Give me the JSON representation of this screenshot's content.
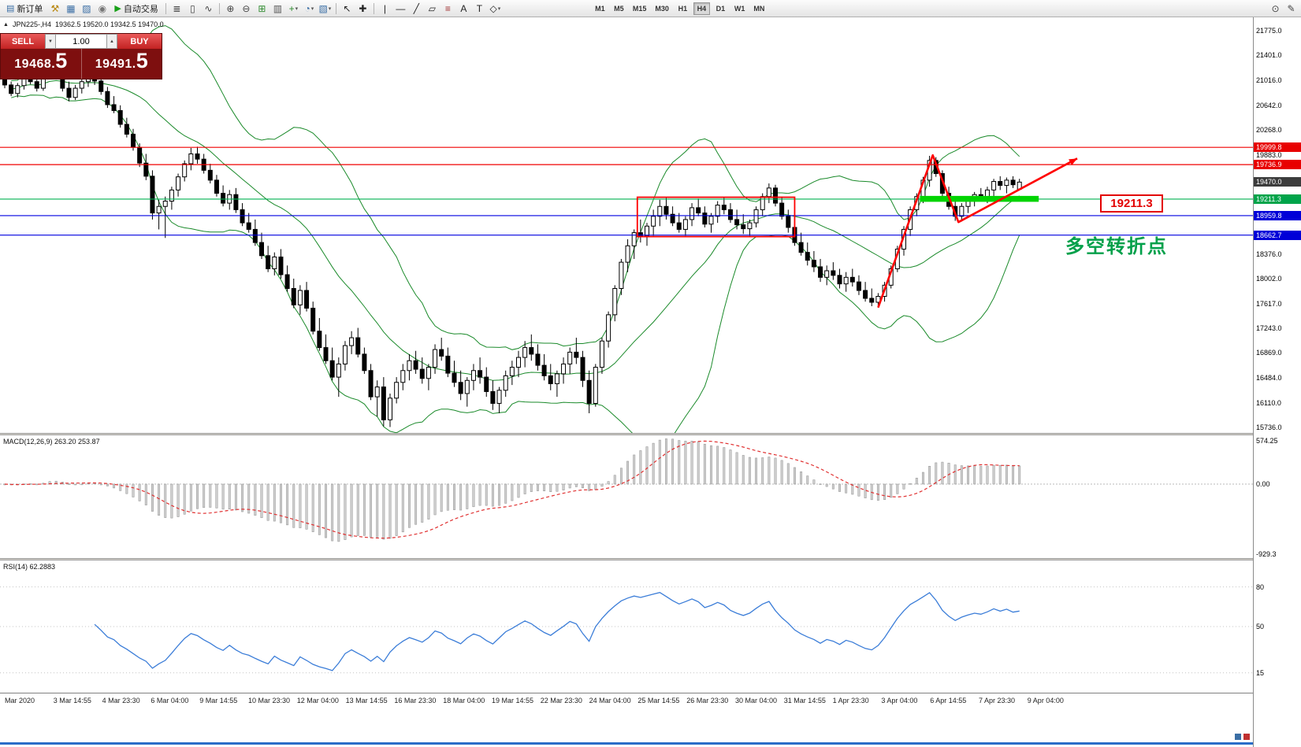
{
  "toolbar": {
    "dropdown_glyph": "▾",
    "items": [
      {
        "t": "btn",
        "name": "new-order-button",
        "glyph": "▤",
        "c": "#3a6ea5",
        "label": "新订单"
      },
      {
        "t": "icon",
        "name": "compile-icon",
        "glyph": "⚒",
        "c": "#b8860b"
      },
      {
        "t": "icon",
        "name": "market-watch-icon",
        "glyph": "▦",
        "c": "#3a6ea5"
      },
      {
        "t": "icon",
        "name": "data-window-icon",
        "glyph": "▨",
        "c": "#3a6ea5"
      },
      {
        "t": "icon",
        "name": "navigator-icon",
        "glyph": "◉",
        "c": "#777777"
      },
      {
        "t": "btn",
        "name": "auto-trading-button",
        "glyph": "▶",
        "c": "#18a018",
        "label": "自动交易"
      },
      {
        "t": "sep"
      },
      {
        "t": "icon",
        "name": "bar-chart-icon",
        "glyph": "≣",
        "c": "#444444"
      },
      {
        "t": "icon",
        "name": "candlestick-chart-icon",
        "glyph": "▯",
        "c": "#444444"
      },
      {
        "t": "icon",
        "name": "line-chart-icon",
        "glyph": "∿",
        "c": "#444444"
      },
      {
        "t": "sep"
      },
      {
        "t": "icon",
        "name": "zoom-in-icon",
        "glyph": "⊕",
        "c": "#444444"
      },
      {
        "t": "icon",
        "name": "zoom-out-icon",
        "glyph": "⊖",
        "c": "#444444"
      },
      {
        "t": "icon",
        "name": "grid-icon",
        "glyph": "⊞",
        "c": "#2e8b2e"
      },
      {
        "t": "icon",
        "name": "chart-shift-icon",
        "glyph": "▥",
        "c": "#555555"
      },
      {
        "t": "icon",
        "name": "add-indicator-icon",
        "glyph": "+",
        "c": "#2e8b2e",
        "dd": true
      },
      {
        "t": "icon",
        "name": "periods-icon",
        "glyph": "◔",
        "c": "#3a6ea5",
        "dd": true
      },
      {
        "t": "icon",
        "name": "templates-icon",
        "glyph": "▧",
        "c": "#3a6ea5",
        "dd": true
      },
      {
        "t": "sep"
      },
      {
        "t": "icon",
        "name": "cursor-icon",
        "glyph": "↖",
        "c": "#222222"
      },
      {
        "t": "icon",
        "name": "crosshair-icon",
        "glyph": "✚",
        "c": "#222222"
      },
      {
        "t": "sep"
      },
      {
        "t": "icon",
        "name": "vertical-line-icon",
        "glyph": "|",
        "c": "#222222"
      },
      {
        "t": "icon",
        "name": "horizontal-line-icon",
        "glyph": "—",
        "c": "#222222"
      },
      {
        "t": "icon",
        "name": "trendline-icon",
        "glyph": "╱",
        "c": "#222222"
      },
      {
        "t": "icon",
        "name": "channel-icon",
        "glyph": "▱",
        "c": "#222222"
      },
      {
        "t": "icon",
        "name": "fibonacci-icon",
        "glyph": "≡",
        "c": "#a03030",
        "sub": "E"
      },
      {
        "t": "icon",
        "name": "text-icon",
        "glyph": "A",
        "c": "#222222"
      },
      {
        "t": "icon",
        "name": "label-icon",
        "glyph": "T",
        "c": "#222222"
      },
      {
        "t": "icon",
        "name": "arrows-icon",
        "glyph": "◇",
        "c": "#222222",
        "dd": true
      },
      {
        "t": "gap"
      },
      {
        "t": "tf"
      },
      {
        "t": "spacer"
      },
      {
        "t": "icon",
        "name": "search-icon",
        "glyph": "⊙",
        "c": "#444444"
      },
      {
        "t": "icon",
        "name": "edit-icon",
        "glyph": "✎",
        "c": "#444444"
      }
    ],
    "timeframes": [
      "M1",
      "M5",
      "M15",
      "M30",
      "H1",
      "H4",
      "D1",
      "W1",
      "MN"
    ],
    "active_timeframe": "H4"
  },
  "chart_header": {
    "collapse_icon": "▲",
    "symbol": "JPN225-,H4",
    "ohlc": "19362.5 19520.0 19342.5 19470.0"
  },
  "trade_panel": {
    "sell_label": "SELL",
    "buy_label": "BUY",
    "volume": "1.00",
    "spin_down": "▼",
    "spin_up": "▲",
    "sell_price": "19468.",
    "sell_pip": "5",
    "buy_price": "19491.",
    "buy_pip": "5"
  },
  "indicator_labels": {
    "macd": "MACD(12,26,9) 263.20 253.87",
    "rsi": "RSI(14) 62.2883"
  },
  "annotations": {
    "price_callout": "19211.3",
    "turning_point": "多空转折点"
  },
  "price_scale": {
    "ticks": [
      "21775.0",
      "21401.0",
      "21016.0",
      "20642.0",
      "20268.0",
      "19883.0",
      "18376.0",
      "18002.0",
      "17617.0",
      "17243.0",
      "16869.0",
      "16484.0",
      "16110.0",
      "15736.0"
    ],
    "macd_ticks": [
      "574.25",
      "0.00",
      "-929.3"
    ],
    "rsi_ticks": [
      "80",
      "50",
      "15"
    ]
  },
  "time_axis": [
    "Mar 2020",
    "3 Mar 14:55",
    "4 Mar 23:30",
    "6 Mar 04:00",
    "9 Mar 14:55",
    "10 Mar 23:30",
    "12 Mar 04:00",
    "13 Mar 14:55",
    "16 Mar 23:30",
    "18 Mar 04:00",
    "19 Mar 14:55",
    "22 Mar 23:30",
    "24 Mar 04:00",
    "25 Mar 14:55",
    "26 Mar 23:30",
    "30 Mar 04:00",
    "31 Mar 14:55",
    "1 Apr 23:30",
    "3 Apr 04:00",
    "6 Apr 14:55",
    "7 Apr 23:30",
    "9 Apr 04:00"
  ],
  "chart_data": {
    "type": "candlestick",
    "symbol": "JPN225-",
    "timeframe": "H4",
    "y_range": [
      15650,
      21980
    ],
    "indicators": {
      "bollinger_period": 20,
      "bollinger_dev": 2,
      "macd": [
        12,
        26,
        9
      ],
      "rsi_period": 14
    },
    "levels": [
      {
        "price": 19999.8,
        "label": "19999.8",
        "color": "#f00000",
        "tag": "red",
        "line": true
      },
      {
        "price": 19736.9,
        "label": "19736.9",
        "color": "#f00000",
        "tag": "red",
        "line": true
      },
      {
        "price": 19470.0,
        "label": "19470.0",
        "color": "#3c3c3c",
        "tag": "dark",
        "line": false
      },
      {
        "price": 19211.3,
        "label": "19211.3",
        "color": "#00b050",
        "tag": "green",
        "line": true
      },
      {
        "price": 18959.8,
        "label": "18959.8",
        "color": "#0000e0",
        "tag": "blue",
        "line": true
      },
      {
        "price": 18662.7,
        "label": "18662.7",
        "color": "#0000e0",
        "tag": "blue",
        "line": true
      }
    ],
    "shapes": {
      "red_rect": {
        "i1": 98.5,
        "i2": 123,
        "p1": 19240,
        "p2": 18640
      },
      "green_zone": {
        "i1": 142.5,
        "i2": 161,
        "p1": 19260,
        "p2": 19170
      },
      "trend_arrow": [
        [
          136,
          17560
        ],
        [
          144.5,
          19880
        ],
        [
          148.5,
          18860
        ],
        [
          167,
          19830
        ]
      ]
    },
    "macd_scale": {
      "zero_y": 62,
      "per_unit": 0.094
    },
    "rsi_range": [
      0,
      100
    ],
    "ohlc": [
      [
        21050,
        21120,
        20900,
        20950
      ],
      [
        20950,
        21000,
        20780,
        20820
      ],
      [
        20820,
        20980,
        20760,
        20940
      ],
      [
        20940,
        21100,
        20880,
        21060
      ],
      [
        21060,
        21160,
        20960,
        21000
      ],
      [
        21000,
        21080,
        20850,
        20900
      ],
      [
        20900,
        21150,
        20860,
        21100
      ],
      [
        21100,
        21320,
        21050,
        21260
      ],
      [
        21260,
        21300,
        21080,
        21120
      ],
      [
        21120,
        21180,
        20850,
        20900
      ],
      [
        20900,
        21000,
        20700,
        20760
      ],
      [
        20760,
        20950,
        20720,
        20900
      ],
      [
        20900,
        21050,
        20820,
        21000
      ],
      [
        21000,
        21120,
        20920,
        21080
      ],
      [
        21080,
        21150,
        20950,
        21010
      ],
      [
        21010,
        21060,
        20800,
        20850
      ],
      [
        20850,
        20920,
        20600,
        20650
      ],
      [
        20650,
        20780,
        20520,
        20560
      ],
      [
        20560,
        20640,
        20300,
        20350
      ],
      [
        20350,
        20450,
        20150,
        20200
      ],
      [
        20200,
        20280,
        19950,
        20000
      ],
      [
        20000,
        20060,
        19700,
        19760
      ],
      [
        19760,
        19900,
        19500,
        19560
      ],
      [
        19560,
        19650,
        18900,
        19000
      ],
      [
        19000,
        19200,
        18750,
        19100
      ],
      [
        19100,
        19250,
        18620,
        19180
      ],
      [
        19180,
        19400,
        19050,
        19350
      ],
      [
        19350,
        19600,
        19250,
        19550
      ],
      [
        19550,
        19800,
        19480,
        19750
      ],
      [
        19750,
        19990,
        19650,
        19900
      ],
      [
        19900,
        20010,
        19750,
        19820
      ],
      [
        19820,
        19900,
        19600,
        19650
      ],
      [
        19650,
        19750,
        19450,
        19500
      ],
      [
        19500,
        19580,
        19250,
        19300
      ],
      [
        19300,
        19420,
        19100,
        19150
      ],
      [
        19150,
        19350,
        19050,
        19280
      ],
      [
        19280,
        19380,
        19000,
        19050
      ],
      [
        19050,
        19150,
        18800,
        18850
      ],
      [
        18850,
        19000,
        18700,
        18750
      ],
      [
        18750,
        18900,
        18500,
        18550
      ],
      [
        18550,
        18700,
        18300,
        18350
      ],
      [
        18350,
        18500,
        18100,
        18150
      ],
      [
        18150,
        18400,
        18050,
        18330
      ],
      [
        18330,
        18450,
        18000,
        18060
      ],
      [
        18060,
        18200,
        17800,
        17850
      ],
      [
        17850,
        18000,
        17550,
        17600
      ],
      [
        17600,
        17900,
        17450,
        17820
      ],
      [
        17820,
        17950,
        17500,
        17550
      ],
      [
        17550,
        17650,
        17150,
        17200
      ],
      [
        17200,
        17400,
        16900,
        16950
      ],
      [
        16950,
        17150,
        16700,
        16750
      ],
      [
        16750,
        16950,
        16450,
        16500
      ],
      [
        16500,
        16800,
        16200,
        16700
      ],
      [
        16700,
        17050,
        16600,
        16980
      ],
      [
        16980,
        17200,
        16850,
        17100
      ],
      [
        17100,
        17250,
        16800,
        16850
      ],
      [
        16850,
        16950,
        16550,
        16600
      ],
      [
        16600,
        16700,
        16150,
        16200
      ],
      [
        16200,
        16450,
        15900,
        16350
      ],
      [
        16350,
        16500,
        15750,
        15850
      ],
      [
        15850,
        16250,
        15740,
        16180
      ],
      [
        16180,
        16500,
        16100,
        16420
      ],
      [
        16420,
        16700,
        16300,
        16600
      ],
      [
        16600,
        16850,
        16450,
        16750
      ],
      [
        16750,
        16900,
        16550,
        16620
      ],
      [
        16620,
        16800,
        16400,
        16480
      ],
      [
        16480,
        16700,
        16300,
        16650
      ],
      [
        16650,
        17000,
        16550,
        16920
      ],
      [
        16920,
        17100,
        16750,
        16820
      ],
      [
        16820,
        16950,
        16500,
        16560
      ],
      [
        16560,
        16750,
        16350,
        16420
      ],
      [
        16420,
        16600,
        16150,
        16250
      ],
      [
        16250,
        16500,
        16050,
        16450
      ],
      [
        16450,
        16700,
        16300,
        16600
      ],
      [
        16600,
        16800,
        16400,
        16500
      ],
      [
        16500,
        16650,
        16200,
        16280
      ],
      [
        16280,
        16450,
        16000,
        16100
      ],
      [
        16100,
        16350,
        15950,
        16300
      ],
      [
        16300,
        16600,
        16200,
        16520
      ],
      [
        16520,
        16750,
        16380,
        16650
      ],
      [
        16650,
        16900,
        16500,
        16800
      ],
      [
        16800,
        17050,
        16650,
        16950
      ],
      [
        16950,
        17150,
        16750,
        16850
      ],
      [
        16850,
        17000,
        16600,
        16680
      ],
      [
        16680,
        16850,
        16450,
        16520
      ],
      [
        16520,
        16700,
        16300,
        16400
      ],
      [
        16400,
        16600,
        16200,
        16550
      ],
      [
        16550,
        16800,
        16400,
        16700
      ],
      [
        16700,
        16950,
        16550,
        16880
      ],
      [
        16880,
        17100,
        16700,
        16800
      ],
      [
        16800,
        16900,
        16350,
        16450
      ],
      [
        16450,
        16600,
        15950,
        16100
      ],
      [
        16100,
        16700,
        16050,
        16650
      ],
      [
        16650,
        17100,
        16550,
        17050
      ],
      [
        17050,
        17500,
        16950,
        17450
      ],
      [
        17450,
        17900,
        17350,
        17850
      ],
      [
        17850,
        18300,
        17750,
        18250
      ],
      [
        18250,
        18600,
        18100,
        18500
      ],
      [
        18500,
        18750,
        18300,
        18700
      ],
      [
        18700,
        18900,
        18550,
        18650
      ],
      [
        18650,
        18850,
        18500,
        18800
      ],
      [
        18800,
        19050,
        18650,
        18950
      ],
      [
        18950,
        19200,
        18800,
        19100
      ],
      [
        19100,
        19230,
        18900,
        18980
      ],
      [
        18980,
        19100,
        18800,
        18850
      ],
      [
        18850,
        19000,
        18700,
        18750
      ],
      [
        18750,
        18950,
        18650,
        18900
      ],
      [
        18900,
        19150,
        18800,
        19080
      ],
      [
        19080,
        19220,
        18950,
        19000
      ],
      [
        19000,
        19100,
        18780,
        18830
      ],
      [
        18830,
        19000,
        18700,
        18950
      ],
      [
        18950,
        19180,
        18850,
        19120
      ],
      [
        19120,
        19240,
        18980,
        19050
      ],
      [
        19050,
        19150,
        18850,
        18900
      ],
      [
        18900,
        19050,
        18750,
        18820
      ],
      [
        18820,
        18980,
        18680,
        18760
      ],
      [
        18760,
        18900,
        18650,
        18850
      ],
      [
        18850,
        19100,
        18780,
        19050
      ],
      [
        19050,
        19300,
        18950,
        19250
      ],
      [
        19250,
        19450,
        19150,
        19380
      ],
      [
        19380,
        19430,
        19100,
        19150
      ],
      [
        19150,
        19250,
        18900,
        18950
      ],
      [
        18950,
        19050,
        18700,
        18780
      ],
      [
        18780,
        18900,
        18500,
        18550
      ],
      [
        18550,
        18700,
        18350,
        18400
      ],
      [
        18400,
        18550,
        18200,
        18280
      ],
      [
        18280,
        18420,
        18100,
        18180
      ],
      [
        18180,
        18300,
        17950,
        18020
      ],
      [
        18020,
        18200,
        17900,
        18120
      ],
      [
        18120,
        18250,
        17980,
        18050
      ],
      [
        18050,
        18150,
        17850,
        17920
      ],
      [
        17920,
        18100,
        17800,
        18020
      ],
      [
        18020,
        18150,
        17880,
        17950
      ],
      [
        17950,
        18050,
        17750,
        17820
      ],
      [
        17820,
        17950,
        17650,
        17700
      ],
      [
        17700,
        17850,
        17580,
        17640
      ],
      [
        17640,
        17780,
        17560,
        17730
      ],
      [
        17730,
        17950,
        17650,
        17900
      ],
      [
        17900,
        18200,
        17850,
        18150
      ],
      [
        18150,
        18500,
        18100,
        18450
      ],
      [
        18450,
        18800,
        18350,
        18750
      ],
      [
        18750,
        19100,
        18650,
        19050
      ],
      [
        19050,
        19300,
        18950,
        19250
      ],
      [
        19250,
        19550,
        19150,
        19500
      ],
      [
        19500,
        19870,
        19400,
        19800
      ],
      [
        19800,
        19850,
        19550,
        19600
      ],
      [
        19600,
        19650,
        19250,
        19300
      ],
      [
        19300,
        19400,
        19050,
        19100
      ],
      [
        19100,
        19200,
        18880,
        18950
      ],
      [
        18950,
        19150,
        18870,
        19100
      ],
      [
        19100,
        19250,
        19000,
        19200
      ],
      [
        19200,
        19320,
        19100,
        19280
      ],
      [
        19280,
        19380,
        19180,
        19250
      ],
      [
        19250,
        19400,
        19150,
        19350
      ],
      [
        19350,
        19520,
        19250,
        19480
      ],
      [
        19480,
        19560,
        19350,
        19420
      ],
      [
        19420,
        19540,
        19300,
        19500
      ],
      [
        19500,
        19560,
        19380,
        19430
      ],
      [
        19362.5,
        19520,
        19342.5,
        19470
      ]
    ]
  }
}
